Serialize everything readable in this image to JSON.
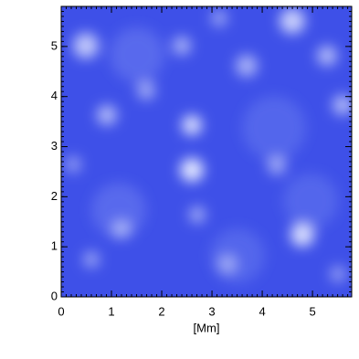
{
  "chart_data": {
    "type": "image",
    "xlabel": "[Mm]",
    "color": "#3e50e8",
    "xlim": [
      0,
      5.78
    ],
    "ylim": [
      0,
      5.8
    ],
    "xticks": [
      0,
      1,
      2,
      3,
      4,
      5
    ],
    "yticks": [
      0,
      1,
      2,
      3,
      4,
      5
    ]
  }
}
